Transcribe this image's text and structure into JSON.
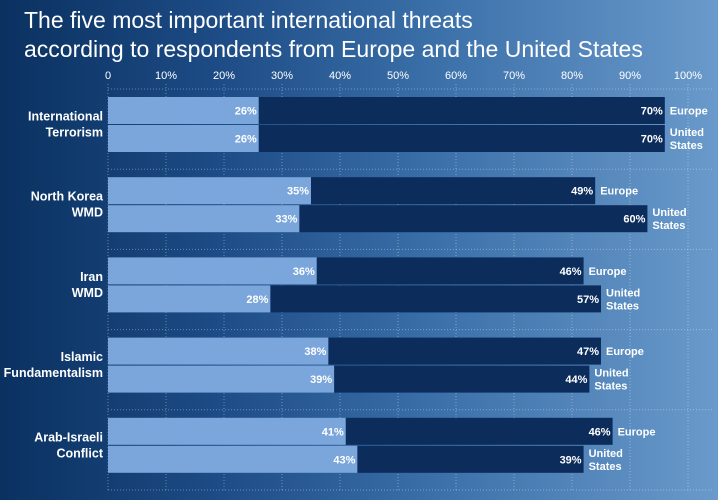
{
  "chart_data": {
    "type": "bar",
    "orientation": "horizontal",
    "stacked": true,
    "title_lines": [
      "The five most important international threats",
      "according to respondents from Europe and the United States"
    ],
    "x_tick_labels": [
      "0",
      "10%",
      "20%",
      "30%",
      "40%",
      "50%",
      "60%",
      "70%",
      "80%",
      "90%",
      "100%"
    ],
    "xlim": [
      0,
      100
    ],
    "categories": [
      {
        "label_lines": [
          "International",
          "Terrorism"
        ]
      },
      {
        "label_lines": [
          "North Korea",
          "WMD"
        ]
      },
      {
        "label_lines": [
          "Iran",
          "WMD"
        ]
      },
      {
        "label_lines": [
          "Islamic",
          "Fundamentalism"
        ]
      },
      {
        "label_lines": [
          "Arab-Israeli",
          "Conflict"
        ]
      }
    ],
    "row_labels": [
      {
        "name": "Europe",
        "lines": [
          "Europe"
        ]
      },
      {
        "name": "United States",
        "lines": [
          "United",
          "States"
        ]
      }
    ],
    "series": [
      {
        "name": "first segment",
        "color": "#7aa6db",
        "values": [
          [
            26,
            26
          ],
          [
            35,
            33
          ],
          [
            36,
            28
          ],
          [
            38,
            39
          ],
          [
            41,
            43
          ]
        ],
        "labels": [
          [
            "26%",
            "26%"
          ],
          [
            "35%",
            "33%"
          ],
          [
            "36%",
            "28%"
          ],
          [
            "38%",
            "39%"
          ],
          [
            "41%",
            "43%"
          ]
        ]
      },
      {
        "name": "second segment",
        "color": "#0c2c5c",
        "values": [
          [
            70,
            70
          ],
          [
            49,
            60
          ],
          [
            46,
            57
          ],
          [
            47,
            44
          ],
          [
            46,
            39
          ]
        ],
        "labels": [
          [
            "70%",
            "70%"
          ],
          [
            "49%",
            "60%"
          ],
          [
            "46%",
            "57%"
          ],
          [
            "47%",
            "44%"
          ],
          [
            "46%",
            "39%"
          ]
        ]
      }
    ]
  }
}
